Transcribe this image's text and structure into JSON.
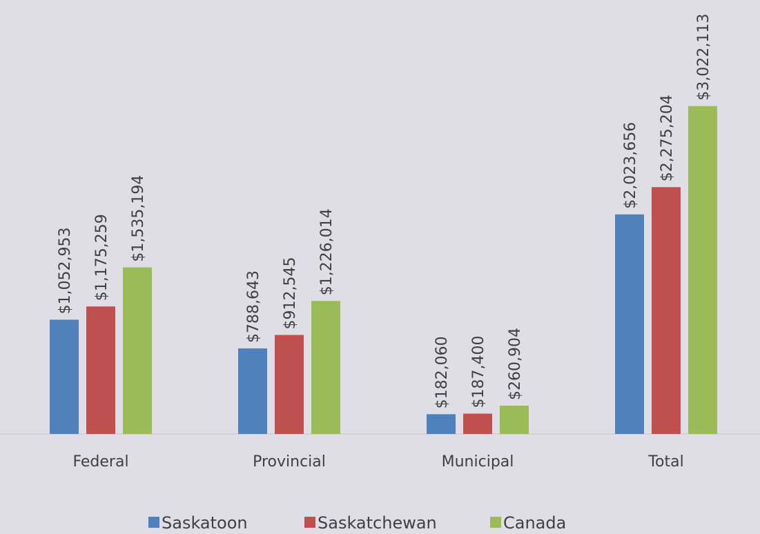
{
  "chart_data": {
    "type": "bar",
    "title": "",
    "xlabel": "",
    "ylabel": "",
    "categories": [
      "Federal",
      "Provincial",
      "Municipal",
      "Total"
    ],
    "series": [
      {
        "name": "Saskatoon",
        "color": "#4f81bd",
        "values": [
          1052953,
          788643,
          182060,
          2023656
        ],
        "labels": [
          "$1,052,953",
          "$788,643",
          "$182,060",
          "$2,023,656"
        ]
      },
      {
        "name": "Saskatchewan",
        "color": "#c0504d",
        "values": [
          1175259,
          912545,
          187400,
          2275204
        ],
        "labels": [
          "$1,175,259",
          "$912,545",
          "$187,400",
          "$2,275,204"
        ]
      },
      {
        "name": "Canada",
        "color": "#9bbb59",
        "values": [
          1535194,
          1226014,
          260904,
          3022113
        ],
        "labels": [
          "$1,535,194",
          "$1,226,014",
          "$260,904",
          "$3,022,113"
        ]
      }
    ],
    "ylim": [
      0,
      4000000
    ],
    "grid": false,
    "legend": "bottom",
    "data_labels": "rotated-vertical"
  }
}
